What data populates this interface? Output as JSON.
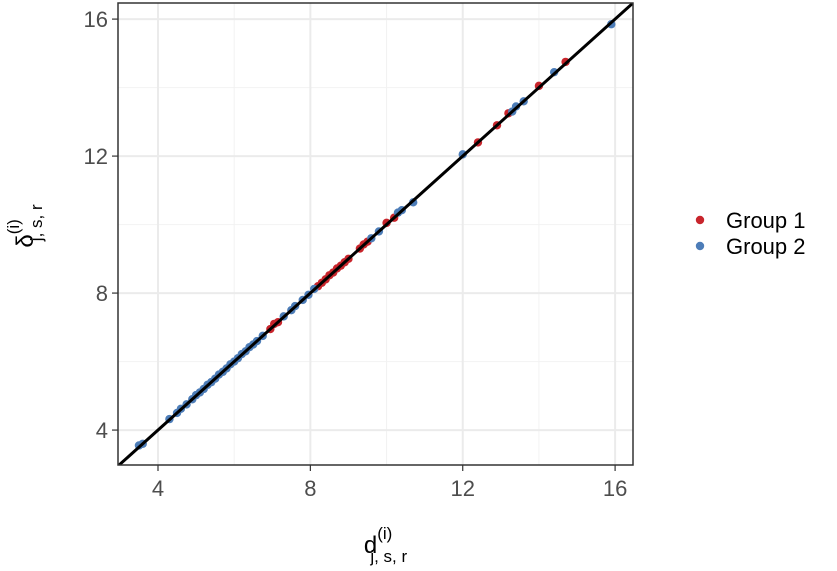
{
  "chart_data": {
    "type": "scatter",
    "x_label": {
      "base": "d",
      "sup": "(i)",
      "sub": "j, s, r"
    },
    "y_label": {
      "base": "δ",
      "sup": "(i)",
      "sub": "j, s, r"
    },
    "xlim": [
      2.95,
      16.47
    ],
    "ylim": [
      2.98,
      16.47
    ],
    "xticks": [
      4,
      8,
      12,
      16
    ],
    "yticks": [
      4,
      8,
      12,
      16
    ],
    "grid": true,
    "minor_grid": true,
    "identity_line": true,
    "legend": "right",
    "series": [
      {
        "name": "Group 1",
        "color": "#c8252c",
        "x": [
          6.95,
          7.05,
          7.15,
          8.2,
          8.3,
          8.4,
          8.5,
          8.6,
          8.7,
          8.8,
          8.9,
          9.0,
          9.3,
          9.4,
          9.5,
          10.0,
          10.2,
          12.4,
          12.9,
          13.2,
          14.0,
          14.7
        ],
        "values": [
          6.95,
          7.1,
          7.15,
          8.2,
          8.3,
          8.4,
          8.52,
          8.6,
          8.72,
          8.8,
          8.9,
          9.0,
          9.3,
          9.42,
          9.5,
          10.05,
          10.2,
          12.4,
          12.9,
          13.25,
          14.05,
          14.75
        ]
      },
      {
        "name": "Group 2",
        "color": "#4d7db8",
        "x": [
          3.5,
          3.6,
          4.3,
          4.5,
          4.6,
          4.75,
          4.9,
          5.0,
          5.1,
          5.2,
          5.3,
          5.4,
          5.5,
          5.6,
          5.7,
          5.8,
          5.9,
          6.0,
          6.1,
          6.2,
          6.3,
          6.4,
          6.5,
          6.6,
          6.75,
          7.3,
          7.5,
          7.6,
          7.8,
          7.95,
          8.1,
          9.6,
          9.8,
          10.3,
          10.4,
          10.7,
          12.0,
          13.3,
          13.4,
          13.6,
          14.4,
          15.9
        ],
        "values": [
          3.55,
          3.6,
          4.32,
          4.5,
          4.62,
          4.75,
          4.9,
          5.02,
          5.1,
          5.2,
          5.32,
          5.4,
          5.5,
          5.62,
          5.7,
          5.8,
          5.92,
          6.0,
          6.1,
          6.22,
          6.3,
          6.42,
          6.5,
          6.6,
          6.75,
          7.32,
          7.5,
          7.62,
          7.8,
          7.95,
          8.12,
          9.6,
          9.8,
          10.35,
          10.42,
          10.65,
          12.05,
          13.3,
          13.45,
          13.6,
          14.45,
          15.85
        ]
      }
    ]
  }
}
